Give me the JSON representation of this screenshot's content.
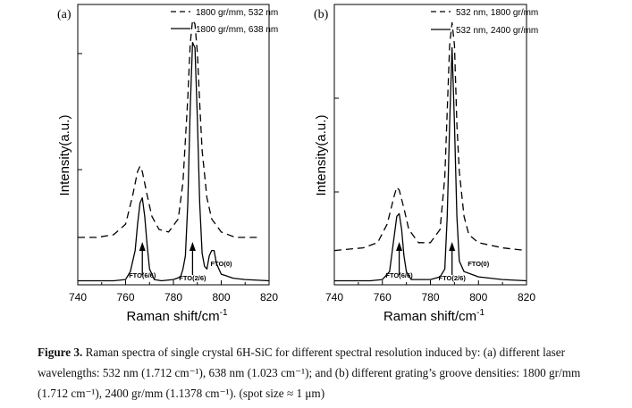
{
  "chart_data": [
    {
      "type": "line",
      "panel_label": "(a)",
      "xlabel": "Raman shift/cm",
      "xlabel_sup": "-1",
      "ylabel": "Intensity(a.u.)",
      "xlim": [
        740,
        820
      ],
      "xticks": [
        "740",
        "760",
        "780",
        "800",
        "820"
      ],
      "y_tick_labels": "none",
      "grid": false,
      "legend_position": "top-right",
      "series": [
        {
          "name": "1800 gr/mm, 532 nm",
          "style": "dashed",
          "points": [
            [
              740,
              0.17
            ],
            [
              748,
              0.17
            ],
            [
              755,
              0.18
            ],
            [
              760,
              0.22
            ],
            [
              763,
              0.33
            ],
            [
              765,
              0.42
            ],
            [
              766,
              0.44
            ],
            [
              767,
              0.42
            ],
            [
              769,
              0.33
            ],
            [
              771,
              0.25
            ],
            [
              774,
              0.2
            ],
            [
              778,
              0.19
            ],
            [
              782,
              0.24
            ],
            [
              784,
              0.38
            ],
            [
              786,
              0.7
            ],
            [
              787,
              0.9
            ],
            [
              788,
              0.995
            ],
            [
              789,
              0.98
            ],
            [
              790,
              0.87
            ],
            [
              791,
              0.68
            ],
            [
              792,
              0.5
            ],
            [
              794,
              0.32
            ],
            [
              796,
              0.24
            ],
            [
              800,
              0.19
            ],
            [
              806,
              0.17
            ],
            [
              815,
              0.17
            ]
          ]
        },
        {
          "name": "1800 gr/mm, 638 nm",
          "style": "solid",
          "points": [
            [
              740,
              0.005
            ],
            [
              755,
              0.005
            ],
            [
              760,
              0.01
            ],
            [
              762,
              0.04
            ],
            [
              764,
              0.12
            ],
            [
              765,
              0.22
            ],
            [
              766,
              0.3
            ],
            [
              767,
              0.32
            ],
            [
              768,
              0.25
            ],
            [
              769,
              0.14
            ],
            [
              770,
              0.05
            ],
            [
              772,
              0.01
            ],
            [
              775,
              0.005
            ],
            [
              780,
              0.01
            ],
            [
              783,
              0.02
            ],
            [
              784,
              0.05
            ],
            [
              785,
              0.1
            ],
            [
              786,
              0.3
            ],
            [
              787,
              0.65
            ],
            [
              788,
              0.91
            ],
            [
              789,
              0.89
            ],
            [
              790,
              0.62
            ],
            [
              791,
              0.3
            ],
            [
              792,
              0.11
            ],
            [
              793,
              0.06
            ],
            [
              794,
              0.05
            ],
            [
              795,
              0.1
            ],
            [
              796,
              0.12
            ],
            [
              797,
              0.12
            ],
            [
              798,
              0.07
            ],
            [
              800,
              0.03
            ],
            [
              805,
              0.015
            ],
            [
              810,
              0.01
            ],
            [
              820,
              0.005
            ]
          ]
        }
      ],
      "annotations": [
        {
          "text": "FTO(6/6)",
          "x": 767
        },
        {
          "text": "FTO(2/6)",
          "x": 788
        },
        {
          "text": "FTO(0)",
          "x": 797
        }
      ]
    },
    {
      "type": "line",
      "panel_label": "(b)",
      "xlabel": "Raman shift/cm",
      "xlabel_sup": "-1",
      "ylabel": "Intensity(a.u.)",
      "xlim": [
        740,
        820
      ],
      "xticks": [
        "740",
        "760",
        "780",
        "800",
        "820"
      ],
      "y_tick_labels": "none",
      "grid": false,
      "legend_position": "top-right",
      "series": [
        {
          "name": "532 nm, 1800 gr/mm",
          "style": "dashed",
          "points": [
            [
              740,
              0.12
            ],
            [
              752,
              0.13
            ],
            [
              758,
              0.15
            ],
            [
              762,
              0.22
            ],
            [
              765,
              0.33
            ],
            [
              766,
              0.36
            ],
            [
              767,
              0.35
            ],
            [
              769,
              0.28
            ],
            [
              771,
              0.2
            ],
            [
              775,
              0.15
            ],
            [
              780,
              0.15
            ],
            [
              784,
              0.2
            ],
            [
              786,
              0.4
            ],
            [
              787,
              0.65
            ],
            [
              788,
              0.9
            ],
            [
              789,
              0.985
            ],
            [
              790,
              0.9
            ],
            [
              791,
              0.6
            ],
            [
              792,
              0.42
            ],
            [
              794,
              0.25
            ],
            [
              796,
              0.18
            ],
            [
              800,
              0.15
            ],
            [
              810,
              0.13
            ],
            [
              820,
              0.12
            ]
          ]
        },
        {
          "name": "532 nm, 2400 gr/mm",
          "style": "solid",
          "points": [
            [
              740,
              0.005
            ],
            [
              755,
              0.005
            ],
            [
              760,
              0.01
            ],
            [
              763,
              0.04
            ],
            [
              765,
              0.18
            ],
            [
              766,
              0.25
            ],
            [
              767,
              0.26
            ],
            [
              768,
              0.2
            ],
            [
              769,
              0.1
            ],
            [
              770,
              0.04
            ],
            [
              772,
              0.01
            ],
            [
              780,
              0.01
            ],
            [
              784,
              0.02
            ],
            [
              786,
              0.05
            ],
            [
              787,
              0.25
            ],
            [
              788,
              0.6
            ],
            [
              789,
              0.89
            ],
            [
              790,
              0.6
            ],
            [
              791,
              0.25
            ],
            [
              792,
              0.08
            ],
            [
              794,
              0.04
            ],
            [
              797,
              0.03
            ],
            [
              800,
              0.02
            ],
            [
              810,
              0.01
            ],
            [
              820,
              0.005
            ]
          ]
        }
      ],
      "annotations": [
        {
          "text": "FTO(6/6)",
          "x": 767
        },
        {
          "text": "FTO(2/6)",
          "x": 789
        },
        {
          "text": "FTO(0)",
          "x": 797
        }
      ]
    }
  ],
  "caption": {
    "lead": "Figure 3.",
    "text": " Raman spectra of single crystal 6H-SiC for different spectral resolution induced by: (a) different laser wavelengths: 532 nm (1.712 cm⁻¹), 638 nm (1.023 cm⁻¹); and (b) different grating’s groove densities: 1800 gr/mm (1.712 cm⁻¹), 2400 gr/mm (1.1378 cm⁻¹). (spot size ≈ 1 μm)"
  }
}
